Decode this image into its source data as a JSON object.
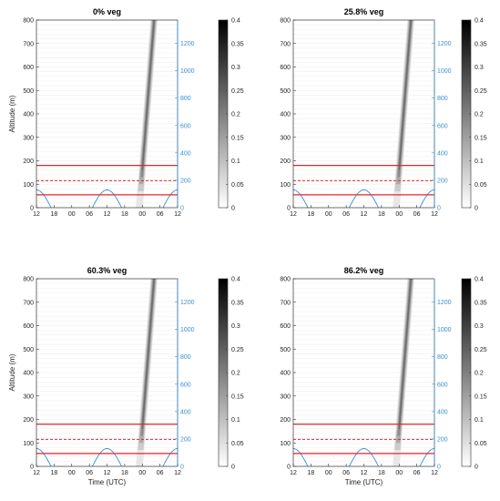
{
  "chart_data": [
    {
      "type": "heatmap",
      "title": "0% veg",
      "ylabel": "Altitude (m)",
      "xlabel": "",
      "x_ticks": [
        "12",
        "18",
        "00",
        "06",
        "12",
        "18",
        "00",
        "06",
        "12"
      ],
      "y_ticks": [
        0,
        100,
        200,
        300,
        400,
        500,
        600,
        700,
        800
      ],
      "ylim": [
        0,
        800
      ],
      "y2_ticks": [
        0,
        200,
        400,
        600,
        800,
        1000,
        1200
      ],
      "y2lim": [
        0,
        1370
      ],
      "colorbar_ticks": [
        0,
        0.05,
        0.1,
        0.15,
        0.2,
        0.25,
        0.3,
        0.35,
        0.4
      ],
      "clim": [
        0,
        0.4
      ],
      "hlines_solid": [
        55,
        180
      ],
      "hline_dashed": 115,
      "plume": {
        "start_hour": 35,
        "end_hour": 40,
        "start_alt": 0,
        "end_alt": 800,
        "width_hours": 2.4
      },
      "y2_series_peaks": [
        {
          "center_hour": 0,
          "value": 130
        },
        {
          "center_hour": 24,
          "value": 130
        },
        {
          "center_hour": 48,
          "value": 130
        }
      ]
    },
    {
      "type": "heatmap",
      "title": "25.8% veg",
      "ylabel": "",
      "xlabel": "",
      "x_ticks": [
        "12",
        "18",
        "00",
        "06",
        "12",
        "18",
        "00",
        "06",
        "12"
      ],
      "y_ticks": [
        0,
        100,
        200,
        300,
        400,
        500,
        600,
        700,
        800
      ],
      "ylim": [
        0,
        800
      ],
      "y2_ticks": [
        0,
        200,
        400,
        600,
        800,
        1000,
        1200
      ],
      "y2lim": [
        0,
        1370
      ],
      "colorbar_ticks": [
        0,
        0.05,
        0.1,
        0.15,
        0.2,
        0.25,
        0.3,
        0.35,
        0.4
      ],
      "clim": [
        0,
        0.4
      ],
      "hlines_solid": [
        55,
        180
      ],
      "hline_dashed": 115,
      "plume": {
        "start_hour": 35,
        "end_hour": 40,
        "start_alt": 0,
        "end_alt": 800,
        "width_hours": 2.4
      },
      "y2_series_peaks": [
        {
          "center_hour": 0,
          "value": 130
        },
        {
          "center_hour": 24,
          "value": 130
        },
        {
          "center_hour": 48,
          "value": 130
        }
      ]
    },
    {
      "type": "heatmap",
      "title": "60.3% veg",
      "ylabel": "Altitude (m)",
      "xlabel": "Time (UTC)",
      "x_ticks": [
        "12",
        "18",
        "00",
        "06",
        "12",
        "18",
        "00",
        "06",
        "12"
      ],
      "y_ticks": [
        0,
        100,
        200,
        300,
        400,
        500,
        600,
        700,
        800
      ],
      "ylim": [
        0,
        800
      ],
      "y2_ticks": [
        0,
        200,
        400,
        600,
        800,
        1000,
        1200
      ],
      "y2lim": [
        0,
        1370
      ],
      "colorbar_ticks": [
        0,
        0.05,
        0.1,
        0.15,
        0.2,
        0.25,
        0.3,
        0.35,
        0.4
      ],
      "clim": [
        0,
        0.4
      ],
      "hlines_solid": [
        55,
        180
      ],
      "hline_dashed": 115,
      "plume": {
        "start_hour": 35,
        "end_hour": 40,
        "start_alt": 0,
        "end_alt": 800,
        "width_hours": 2.4
      },
      "y2_series_peaks": [
        {
          "center_hour": 0,
          "value": 130
        },
        {
          "center_hour": 24,
          "value": 130
        },
        {
          "center_hour": 48,
          "value": 130
        }
      ]
    },
    {
      "type": "heatmap",
      "title": "86.2% veg",
      "ylabel": "",
      "xlabel": "Time (UTC)",
      "x_ticks": [
        "12",
        "18",
        "00",
        "06",
        "12",
        "18",
        "00",
        "06",
        "12"
      ],
      "y_ticks": [
        0,
        100,
        200,
        300,
        400,
        500,
        600,
        700,
        800
      ],
      "ylim": [
        0,
        800
      ],
      "y2_ticks": [
        0,
        200,
        400,
        600,
        800,
        1000,
        1200
      ],
      "y2lim": [
        0,
        1370
      ],
      "colorbar_ticks": [
        0,
        0.05,
        0.1,
        0.15,
        0.2,
        0.25,
        0.3,
        0.35,
        0.4
      ],
      "clim": [
        0,
        0.4
      ],
      "hlines_solid": [
        55,
        180
      ],
      "hline_dashed": 115,
      "plume": {
        "start_hour": 35,
        "end_hour": 40,
        "start_alt": 0,
        "end_alt": 800,
        "width_hours": 2.4
      },
      "y2_series_peaks": [
        {
          "center_hour": 0,
          "value": 130
        },
        {
          "center_hour": 24,
          "value": 130
        },
        {
          "center_hour": 48,
          "value": 130
        }
      ]
    }
  ],
  "colors": {
    "solid_line": "#e8262a",
    "dashed_line": "#e8262a",
    "right_axis": "#3a8fd0",
    "plume_dark": "#3a3a3a",
    "plume_light": "#d8d8d8"
  }
}
